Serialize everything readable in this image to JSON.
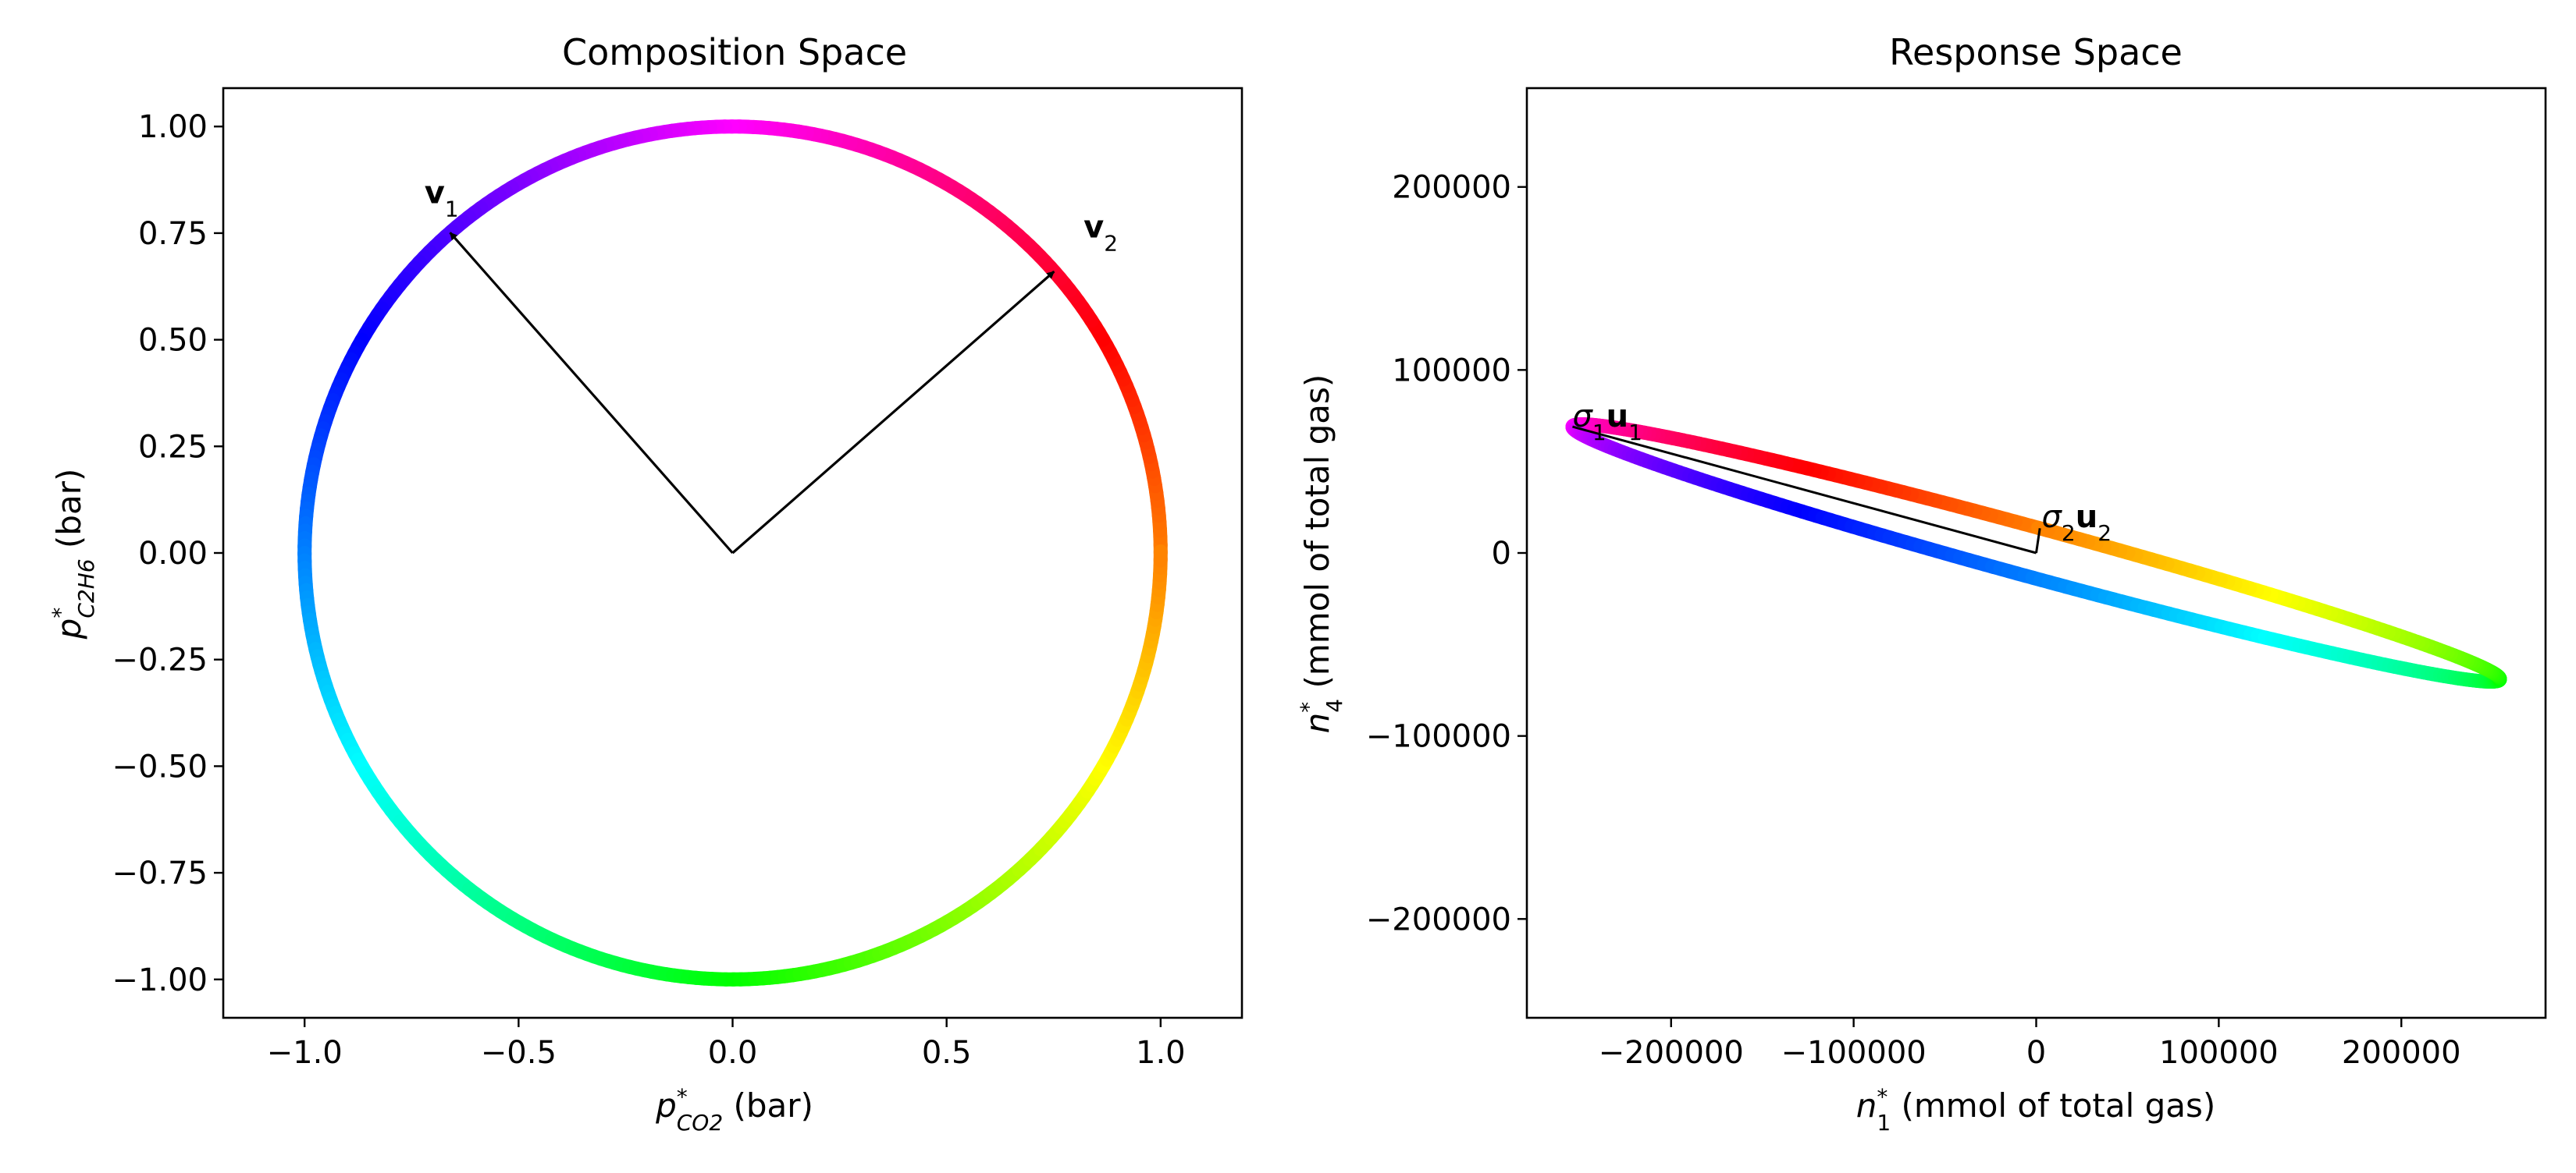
{
  "chart_data": [
    {
      "type": "line",
      "title": "Composition Space",
      "xlabel": {
        "var": "p",
        "sup": "*",
        "sub": "CO2",
        "unit": " (bar)"
      },
      "ylabel": {
        "var": "p",
        "sup": "*",
        "sub": "C2H6",
        "unit": " (bar)"
      },
      "xlim": [
        -1.19,
        1.19
      ],
      "ylim": [
        -1.09,
        1.09
      ],
      "xticks": [
        -1.0,
        -0.5,
        0.0,
        0.5,
        1.0
      ],
      "xtick_labels": [
        "−1.0",
        "−0.5",
        "0.0",
        "0.5",
        "1.0"
      ],
      "yticks": [
        1.0,
        0.75,
        0.5,
        0.25,
        0.0,
        -0.25,
        -0.5,
        -0.75,
        -1.0
      ],
      "ytick_labels": [
        "1.00",
        "0.75",
        "0.50",
        "0.25",
        "0.00",
        "−0.25",
        "−0.50",
        "−0.75",
        "−1.00"
      ],
      "curve": {
        "shape": "unit circle",
        "radius": 1.0,
        "color_by": "angle (hue)"
      },
      "vectors": [
        {
          "x": [
            0,
            -0.66
          ],
          "y": [
            0,
            0.751
          ],
          "color": "#000000"
        },
        {
          "x": [
            0,
            0.751
          ],
          "y": [
            0,
            0.66
          ],
          "color": "#000000"
        }
      ],
      "annotations": [
        {
          "bold": "v",
          "sub": "1",
          "x": -0.72,
          "y": 0.82
        },
        {
          "bold": "v",
          "sub": "2",
          "x": 0.82,
          "y": 0.74
        }
      ],
      "grid": false
    },
    {
      "type": "line",
      "title": "Response Space",
      "xlabel": {
        "var": "n",
        "sup": "*",
        "sub": "1",
        "unit": " (mmol of total gas)"
      },
      "ylabel": {
        "var": "n",
        "sup": "*",
        "sub": "4",
        "unit": " (mmol of total gas)"
      },
      "xlim": [
        -279000,
        279000
      ],
      "ylim": [
        -254000,
        254000
      ],
      "xticks": [
        -200000,
        -100000,
        0,
        100000,
        200000
      ],
      "xtick_labels": [
        "−200000",
        "−100000",
        "0",
        "100000",
        "200000"
      ],
      "yticks": [
        200000,
        100000,
        0,
        -100000,
        -200000
      ],
      "ytick_labels": [
        "200000",
        "100000",
        "0",
        "−100000",
        "−200000"
      ],
      "curve": {
        "shape": "ellipse",
        "major_endpoint": [
          -254000,
          69000
        ],
        "minor_endpoint": [
          2000,
          13500
        ],
        "color_by": "angle (hue)"
      },
      "vectors": [
        {
          "x": [
            0,
            -254000
          ],
          "y": [
            0,
            69000
          ],
          "color": "#000000"
        },
        {
          "x": [
            0,
            2000
          ],
          "y": [
            0,
            13500
          ],
          "color": "#000000"
        }
      ],
      "annotations": [
        {
          "sigma": "σ",
          "sigma_sub": "1",
          "bold": "u",
          "sub": "1",
          "x": -254000,
          "y": 69000
        },
        {
          "sigma": "σ",
          "sigma_sub": "2",
          "bold": "u",
          "sub": "2",
          "x": 3000,
          "y": 14000
        }
      ],
      "grid": false
    }
  ]
}
